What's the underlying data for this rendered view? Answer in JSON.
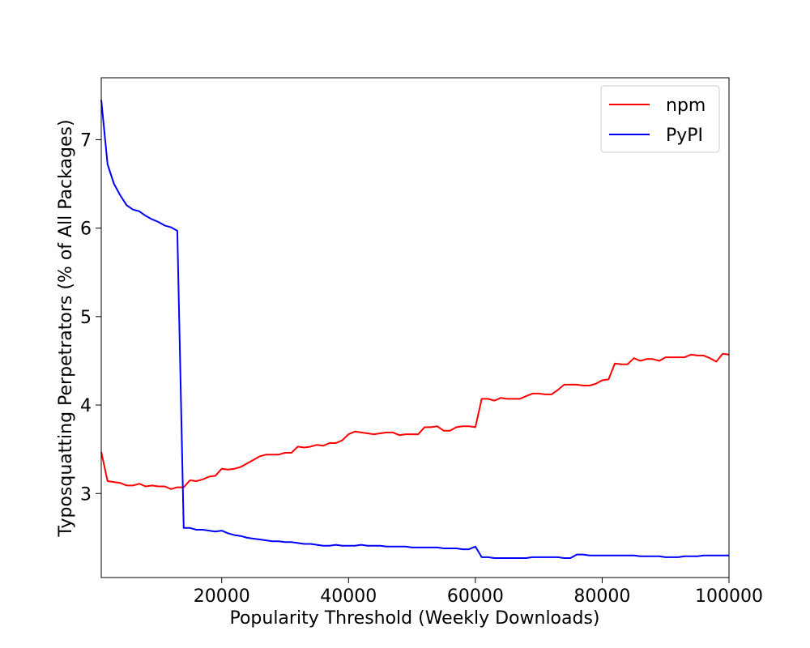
{
  "chart_data": {
    "type": "line",
    "title": "",
    "xlabel": "Popularity Threshold (Weekly Downloads)",
    "ylabel": "Typosquatting Perpetrators (% of All Packages)",
    "xlim": [
      1000,
      100000
    ],
    "ylim": [
      2.05,
      7.7
    ],
    "xticks": [
      20000,
      40000,
      60000,
      80000,
      100000
    ],
    "yticks": [
      3,
      4,
      5,
      6,
      7
    ],
    "grid": false,
    "legend_position": "top-right",
    "series": [
      {
        "name": "npm",
        "color": "#ff0000",
        "x": [
          1000,
          2000,
          3000,
          4000,
          5000,
          6000,
          7000,
          8000,
          9000,
          10000,
          11000,
          12000,
          13000,
          14000,
          15000,
          16000,
          17000,
          18000,
          19000,
          20000,
          21000,
          22000,
          23000,
          24000,
          25000,
          26000,
          27000,
          28000,
          29000,
          30000,
          31000,
          32000,
          33000,
          34000,
          35000,
          36000,
          37000,
          38000,
          39000,
          40000,
          41000,
          42000,
          43000,
          44000,
          45000,
          46000,
          47000,
          48000,
          49000,
          50000,
          51000,
          52000,
          53000,
          54000,
          55000,
          56000,
          57000,
          58000,
          59000,
          60000,
          61000,
          62000,
          63000,
          64000,
          65000,
          66000,
          67000,
          68000,
          69000,
          70000,
          71000,
          72000,
          73000,
          74000,
          75000,
          76000,
          77000,
          78000,
          79000,
          80000,
          81000,
          82000,
          83000,
          84000,
          85000,
          86000,
          87000,
          88000,
          89000,
          90000,
          91000,
          92000,
          93000,
          94000,
          95000,
          96000,
          97000,
          98000,
          99000,
          100000
        ],
        "values": [
          3.47,
          3.14,
          3.13,
          3.12,
          3.09,
          3.09,
          3.11,
          3.08,
          3.09,
          3.08,
          3.08,
          3.05,
          3.07,
          3.07,
          3.15,
          3.14,
          3.16,
          3.19,
          3.2,
          3.28,
          3.27,
          3.28,
          3.3,
          3.34,
          3.38,
          3.42,
          3.44,
          3.44,
          3.44,
          3.46,
          3.46,
          3.53,
          3.52,
          3.53,
          3.55,
          3.54,
          3.57,
          3.57,
          3.6,
          3.67,
          3.7,
          3.69,
          3.68,
          3.67,
          3.68,
          3.69,
          3.69,
          3.66,
          3.67,
          3.67,
          3.67,
          3.75,
          3.75,
          3.76,
          3.71,
          3.71,
          3.75,
          3.76,
          3.76,
          3.75,
          4.07,
          4.07,
          4.05,
          4.08,
          4.07,
          4.07,
          4.07,
          4.1,
          4.13,
          4.13,
          4.12,
          4.12,
          4.17,
          4.23,
          4.23,
          4.23,
          4.22,
          4.22,
          4.24,
          4.28,
          4.29,
          4.47,
          4.46,
          4.46,
          4.53,
          4.5,
          4.52,
          4.52,
          4.5,
          4.54,
          4.54,
          4.54,
          4.54,
          4.57,
          4.56,
          4.56,
          4.53,
          4.49,
          4.58,
          4.57
        ]
      },
      {
        "name": "PyPI",
        "color": "#0000ff",
        "x": [
          1000,
          2000,
          3000,
          4000,
          5000,
          6000,
          7000,
          8000,
          9000,
          10000,
          11000,
          12000,
          13000,
          14000,
          15000,
          16000,
          17000,
          18000,
          19000,
          20000,
          21000,
          22000,
          23000,
          24000,
          25000,
          26000,
          27000,
          28000,
          29000,
          30000,
          31000,
          32000,
          33000,
          34000,
          35000,
          36000,
          37000,
          38000,
          39000,
          40000,
          41000,
          42000,
          43000,
          44000,
          45000,
          46000,
          47000,
          48000,
          49000,
          50000,
          51000,
          52000,
          53000,
          54000,
          55000,
          56000,
          57000,
          58000,
          59000,
          60000,
          61000,
          62000,
          63000,
          64000,
          65000,
          66000,
          67000,
          68000,
          69000,
          70000,
          71000,
          72000,
          73000,
          74000,
          75000,
          76000,
          77000,
          78000,
          79000,
          80000,
          81000,
          82000,
          83000,
          84000,
          85000,
          86000,
          87000,
          88000,
          89000,
          90000,
          91000,
          92000,
          93000,
          94000,
          95000,
          96000,
          97000,
          98000,
          99000,
          100000
        ],
        "values": [
          7.45,
          6.72,
          6.5,
          6.37,
          6.26,
          6.21,
          6.19,
          6.14,
          6.1,
          6.07,
          6.03,
          6.01,
          5.97,
          2.61,
          2.61,
          2.59,
          2.59,
          2.58,
          2.57,
          2.58,
          2.55,
          2.53,
          2.52,
          2.5,
          2.49,
          2.48,
          2.47,
          2.46,
          2.46,
          2.45,
          2.45,
          2.44,
          2.43,
          2.43,
          2.42,
          2.41,
          2.41,
          2.42,
          2.41,
          2.41,
          2.41,
          2.42,
          2.41,
          2.41,
          2.41,
          2.4,
          2.4,
          2.4,
          2.4,
          2.39,
          2.39,
          2.39,
          2.39,
          2.39,
          2.38,
          2.38,
          2.38,
          2.37,
          2.37,
          2.4,
          2.28,
          2.28,
          2.27,
          2.27,
          2.27,
          2.27,
          2.27,
          2.27,
          2.28,
          2.28,
          2.28,
          2.28,
          2.28,
          2.27,
          2.27,
          2.31,
          2.31,
          2.3,
          2.3,
          2.3,
          2.3,
          2.3,
          2.3,
          2.3,
          2.3,
          2.29,
          2.29,
          2.29,
          2.29,
          2.28,
          2.28,
          2.28,
          2.29,
          2.29,
          2.29,
          2.3,
          2.3,
          2.3,
          2.3,
          2.3
        ]
      }
    ]
  }
}
